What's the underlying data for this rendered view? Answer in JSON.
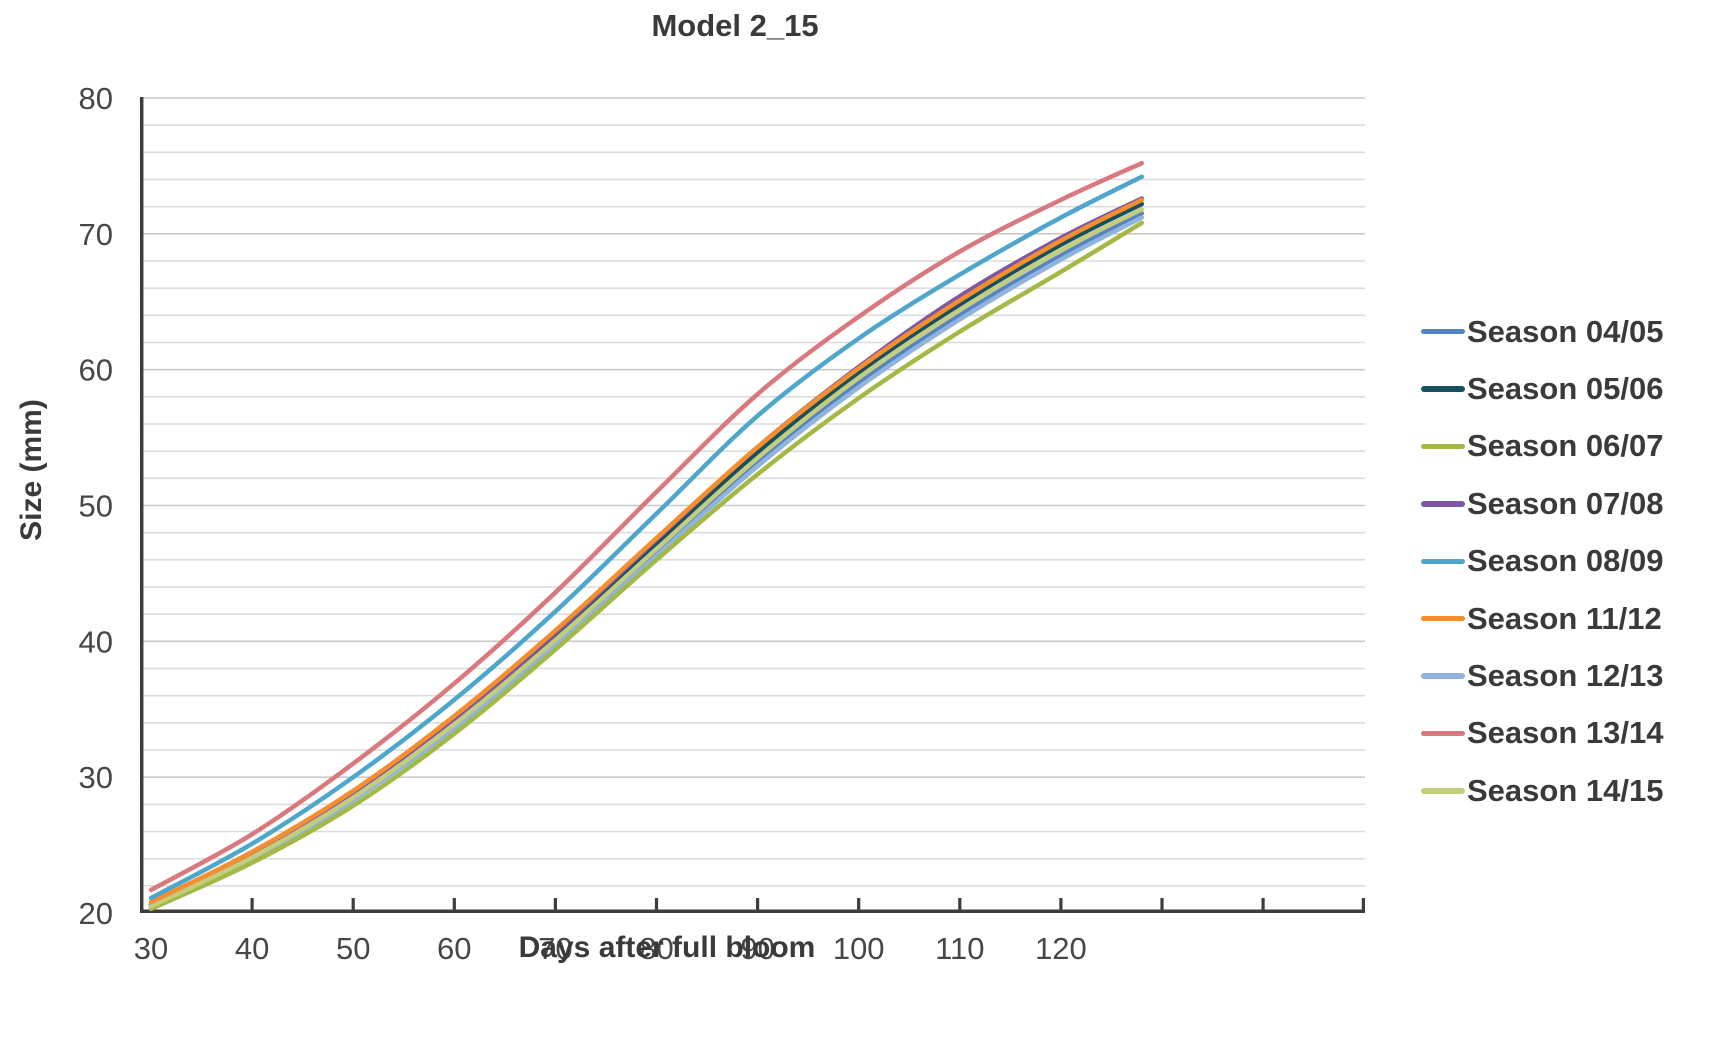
{
  "page": {
    "background": "#ffffff"
  },
  "chart_data": {
    "type": "line",
    "title": "Model 2_15",
    "xlabel": "Days after full bloom",
    "ylabel": "Size (mm)",
    "x": [
      30,
      40,
      50,
      60,
      70,
      80,
      90,
      100,
      110,
      120,
      128
    ],
    "series": [
      {
        "name": "Season 04/05",
        "color": "#5584c1",
        "values": [
          20.5,
          24.0,
          28.4,
          33.7,
          39.9,
          46.6,
          53.2,
          59.0,
          64.0,
          68.4,
          71.5
        ]
      },
      {
        "name": "Season 05/06",
        "color": "#17505f",
        "values": [
          20.6,
          24.2,
          28.7,
          34.1,
          40.3,
          47.1,
          53.9,
          59.8,
          64.8,
          69.2,
          72.2
        ]
      },
      {
        "name": "Season 06/07",
        "color": "#a4b845",
        "values": [
          20.3,
          23.7,
          27.9,
          33.2,
          39.4,
          46.0,
          52.3,
          57.9,
          62.8,
          67.2,
          70.8
        ]
      },
      {
        "name": "Season 07/08",
        "color": "#7d57a4",
        "values": [
          20.6,
          24.3,
          28.8,
          34.3,
          40.6,
          47.5,
          54.3,
          60.2,
          65.4,
          69.7,
          72.6
        ]
      },
      {
        "name": "Season 08/09",
        "color": "#4fa6cb",
        "values": [
          21.1,
          25.1,
          30.0,
          35.7,
          42.2,
          49.4,
          56.6,
          62.3,
          67.0,
          71.2,
          74.2
        ]
      },
      {
        "name": "Season 11/12",
        "color": "#f78e2d",
        "values": [
          20.8,
          24.5,
          29.0,
          34.5,
          40.8,
          47.6,
          54.3,
          60.1,
          65.1,
          69.5,
          72.5
        ]
      },
      {
        "name": "Season 12/13",
        "color": "#90b4db",
        "values": [
          20.4,
          23.9,
          28.3,
          33.6,
          39.7,
          46.3,
          52.9,
          58.7,
          63.7,
          68.1,
          71.2
        ]
      },
      {
        "name": "Season 13/14",
        "color": "#d9797e",
        "values": [
          21.7,
          25.8,
          31.0,
          36.9,
          43.6,
          51.0,
          58.2,
          63.9,
          68.7,
          72.5,
          75.2
        ]
      },
      {
        "name": "Season 14/15",
        "color": "#c3cd7d",
        "values": [
          20.5,
          24.1,
          28.5,
          33.9,
          40.1,
          46.8,
          53.5,
          59.4,
          64.4,
          68.8,
          71.8
        ]
      }
    ],
    "xlim": [
      29,
      150
    ],
    "ylim": [
      20,
      80
    ],
    "x_tick_labels": [
      30,
      40,
      50,
      60,
      70,
      80,
      90,
      100,
      110,
      120
    ],
    "x_tick_marks": [
      40,
      50,
      60,
      70,
      80,
      90,
      100,
      110,
      120,
      130,
      140
    ],
    "y_tick_labels": [
      20,
      30,
      40,
      50,
      60,
      70,
      80
    ],
    "y_grid_step": 2,
    "grid": "horizontal",
    "legend_position": "right",
    "colors": {
      "axis": "#3d3d3d",
      "grid_minor": "#dcdcdc",
      "grid_major": "#c9c9c9",
      "tick_text": "#474747",
      "title_text": "#3a3a3a"
    }
  }
}
